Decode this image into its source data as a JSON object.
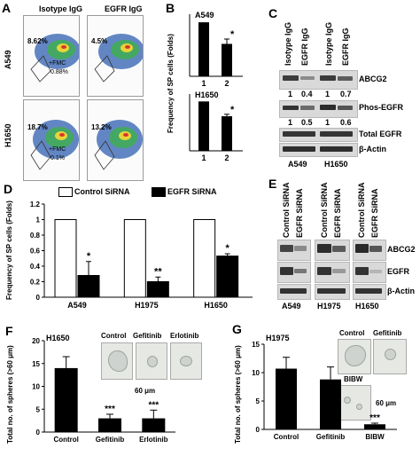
{
  "panel_labels": {
    "a": "A",
    "b": "B",
    "c": "C",
    "d": "D",
    "e": "E",
    "f": "F",
    "g": "G"
  },
  "panelA": {
    "col_headers": [
      "Isotype IgG",
      "EGFR IgG"
    ],
    "row_labels": [
      "A549",
      "H1650"
    ],
    "percentages": [
      "8.62%",
      "4.5%",
      "18.7%",
      "13.2%"
    ],
    "fmc_labels": [
      "+FMC",
      "+FMC"
    ],
    "fmc_values": [
      "0.88%",
      "0.1%"
    ]
  },
  "panelB": {
    "ylabel": "Frequency of SP cells (Folds)",
    "chart_data": [
      {
        "type": "bar",
        "title": "A549",
        "categories": [
          "1",
          "2"
        ],
        "values": [
          1.0,
          0.6
        ],
        "errors": [
          0,
          0.09
        ],
        "annotations": [
          "",
          "*"
        ],
        "ylim": [
          0,
          1.15
        ]
      },
      {
        "type": "bar",
        "title": "H1650",
        "categories": [
          "1",
          "2"
        ],
        "values": [
          1.0,
          0.7
        ],
        "errors": [
          0,
          0.04
        ],
        "annotations": [
          "",
          "*"
        ],
        "ylim": [
          0,
          1.15
        ]
      }
    ]
  },
  "panelC": {
    "col_headers": [
      "Isotype IgG",
      "EGFR IgG",
      "Isotype IgG",
      "EGFR IgG"
    ],
    "row_labels": [
      "ABCG2",
      "Phos-EGFR",
      "Total EGFR",
      "β-Actin"
    ],
    "values_abcg2": [
      "1",
      "0.4",
      "1",
      "0.7"
    ],
    "values_phos": [
      "1",
      "0.5",
      "1",
      "0.6"
    ],
    "cell_lines": [
      "A549",
      "H1650"
    ]
  },
  "panelD": {
    "legend": [
      "Control SiRNA",
      "EGFR SiRNA"
    ],
    "ylabel": "Frequency of SP cells (Folds)",
    "chart_data": {
      "type": "bar",
      "categories": [
        "A549",
        "H1975",
        "H1650"
      ],
      "series": [
        {
          "name": "Control SiRNA",
          "values": [
            1,
            1,
            1
          ],
          "color": "#ffffff"
        },
        {
          "name": "EGFR SiRNA",
          "values": [
            0.28,
            0.2,
            0.53
          ],
          "color": "#000000",
          "errors": [
            0.18,
            0.06,
            0.03
          ],
          "annotations": [
            "*",
            "**",
            "*"
          ]
        }
      ],
      "yticks": [
        "0",
        "0.2",
        "0.4",
        "0.6",
        "0.8",
        "1",
        "1.2"
      ],
      "ylim": [
        0,
        1.2
      ]
    }
  },
  "panelE": {
    "col_headers": [
      "Control SiRNA",
      "EGFR SiRNA",
      "Control SiRNA",
      "EGFR SiRNA",
      "Control SiRNA",
      "EGFR SiRNA"
    ],
    "row_labels": [
      "ABCG2",
      "EGFR",
      "β-Actin"
    ],
    "cell_lines": [
      "A549",
      "H1975",
      "H1650"
    ]
  },
  "panelF": {
    "cell_line": "H1650",
    "ylabel": "Total no. of spheres (>60 μm)",
    "img_labels": [
      "Control",
      "Gefitinib",
      "Erlotinib"
    ],
    "scale_label": "60 μm",
    "chart_data": {
      "type": "bar",
      "categories": [
        "Control",
        "Gefitinib",
        "Erlotinib"
      ],
      "values": [
        14,
        3,
        3
      ],
      "errors": [
        2.5,
        0.9,
        1.8
      ],
      "annotations": [
        "",
        "***",
        "***"
      ],
      "yticks": [
        "0",
        "5",
        "10",
        "15",
        "20"
      ],
      "ylim": [
        0,
        20
      ]
    }
  },
  "panelG": {
    "cell_line": "H1975",
    "ylabel": "Total no. of spheres (>60 μm)",
    "img_labels": [
      "Control",
      "Gefitinib",
      "BIBW"
    ],
    "scale_label": "60 μm",
    "chart_data": {
      "type": "bar",
      "categories": [
        "Control",
        "Gefitinib",
        "BIBW"
      ],
      "values": [
        10.7,
        8.8,
        0.9
      ],
      "errors": [
        2.0,
        2.2,
        0.2
      ],
      "annotations": [
        "",
        "",
        "***"
      ],
      "yticks": [
        "0",
        "5",
        "10",
        "15"
      ],
      "ylim": [
        0,
        15
      ]
    }
  }
}
